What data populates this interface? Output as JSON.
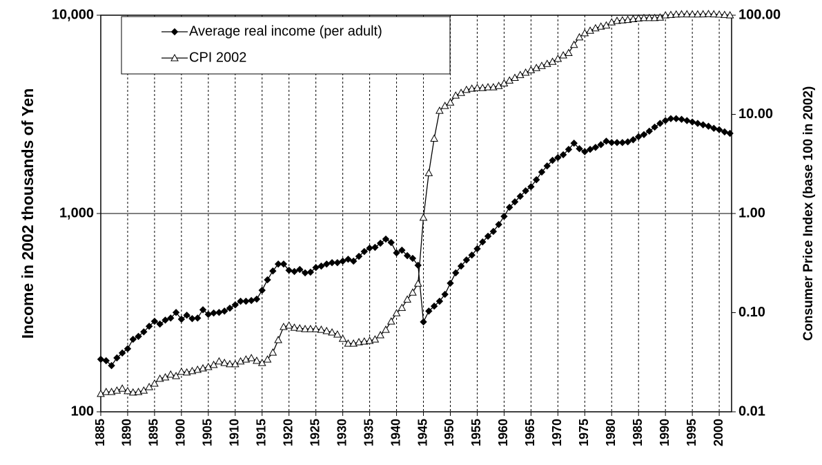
{
  "chart_data": {
    "type": "line",
    "x": [
      1885,
      1886,
      1887,
      1888,
      1889,
      1890,
      1891,
      1892,
      1893,
      1894,
      1895,
      1896,
      1897,
      1898,
      1899,
      1900,
      1901,
      1902,
      1903,
      1904,
      1905,
      1906,
      1907,
      1908,
      1909,
      1910,
      1911,
      1912,
      1913,
      1914,
      1915,
      1916,
      1917,
      1918,
      1919,
      1920,
      1921,
      1922,
      1923,
      1924,
      1925,
      1926,
      1927,
      1928,
      1929,
      1930,
      1931,
      1932,
      1933,
      1934,
      1935,
      1936,
      1937,
      1938,
      1939,
      1940,
      1941,
      1942,
      1943,
      1944,
      1945,
      1946,
      1947,
      1948,
      1949,
      1950,
      1951,
      1952,
      1953,
      1954,
      1955,
      1956,
      1957,
      1958,
      1959,
      1960,
      1961,
      1962,
      1963,
      1964,
      1965,
      1966,
      1967,
      1968,
      1969,
      1970,
      1971,
      1972,
      1973,
      1974,
      1975,
      1976,
      1977,
      1978,
      1979,
      1980,
      1981,
      1982,
      1983,
      1984,
      1985,
      1986,
      1987,
      1988,
      1989,
      1990,
      1991,
      1992,
      1993,
      1994,
      1995,
      1996,
      1997,
      1998,
      1999,
      2000,
      2001,
      2002
    ],
    "xlim": [
      1885,
      2002.3
    ],
    "xticks": [
      1885,
      1890,
      1895,
      1900,
      1905,
      1910,
      1915,
      1920,
      1925,
      1930,
      1935,
      1940,
      1945,
      1950,
      1955,
      1960,
      1965,
      1970,
      1975,
      1980,
      1985,
      1990,
      1995,
      2000
    ],
    "ylabel": "Income in 2002 thousands of Yen",
    "y2label": "Consumer Price Index (base 100 in 2002)",
    "yscale": "log",
    "y2scale": "log",
    "ylim": [
      100,
      10000
    ],
    "yticks": [
      {
        "value": 100,
        "label": "100"
      },
      {
        "value": 1000,
        "label": "1,000"
      },
      {
        "value": 10000,
        "label": "10,000"
      }
    ],
    "y2lim": [
      0.01,
      100
    ],
    "y2ticks": [
      {
        "value": 0.01,
        "label": "0.01"
      },
      {
        "value": 0.1,
        "label": "0.10"
      },
      {
        "value": 1,
        "label": "1.00"
      },
      {
        "value": 10,
        "label": "10.00"
      },
      {
        "value": 100,
        "label": "100.00"
      }
    ],
    "legend": "top-left",
    "series": [
      {
        "name": "Average real income (per adult)",
        "color": "#000000",
        "marker": "diamond",
        "values": [
          184,
          181,
          171,
          187,
          198,
          208,
          232,
          240,
          253,
          270,
          286,
          277,
          290,
          297,
          317,
          293,
          307,
          295,
          297,
          327,
          310,
          315,
          317,
          322,
          333,
          346,
          361,
          361,
          364,
          370,
          410,
          463,
          513,
          556,
          556,
          517,
          510,
          522,
          502,
          506,
          534,
          543,
          556,
          565,
          565,
          575,
          588,
          575,
          608,
          643,
          669,
          675,
          708,
          743,
          714,
          633,
          653,
          613,
          594,
          548,
          284,
          322,
          341,
          361,
          391,
          445,
          502,
          543,
          583,
          617,
          664,
          719,
          768,
          812,
          880,
          967,
          1074,
          1145,
          1221,
          1301,
          1365,
          1480,
          1618,
          1737,
          1853,
          1914,
          1979,
          2105,
          2262,
          2122,
          2050,
          2105,
          2155,
          2225,
          2316,
          2279,
          2279,
          2279,
          2297,
          2355,
          2439,
          2500,
          2601,
          2727,
          2847,
          2941,
          3009,
          3009,
          2985,
          2941,
          2894,
          2847,
          2800,
          2754,
          2689,
          2646,
          2580,
          2535
        ]
      },
      {
        "name": "CPI 2002",
        "color": "#000000",
        "marker": "triangle",
        "axis": "y2",
        "values": [
          0.0152,
          0.0159,
          0.0159,
          0.0164,
          0.0172,
          0.0162,
          0.0157,
          0.0159,
          0.0164,
          0.0178,
          0.0193,
          0.0216,
          0.0223,
          0.0238,
          0.023,
          0.0254,
          0.025,
          0.0258,
          0.0266,
          0.0275,
          0.0284,
          0.0298,
          0.0323,
          0.0312,
          0.0303,
          0.0303,
          0.0323,
          0.0338,
          0.0349,
          0.0328,
          0.0312,
          0.0338,
          0.0397,
          0.0531,
          0.0719,
          0.0743,
          0.0707,
          0.0696,
          0.0685,
          0.0685,
          0.0685,
          0.0674,
          0.0654,
          0.0633,
          0.0603,
          0.0547,
          0.0489,
          0.0489,
          0.0505,
          0.0513,
          0.0521,
          0.0538,
          0.0594,
          0.0674,
          0.0817,
          0.099,
          0.112,
          0.136,
          0.16,
          0.197,
          0.91,
          2.56,
          5.7,
          10.9,
          12.2,
          13.2,
          15.5,
          16.5,
          17.7,
          18.2,
          18.5,
          18.5,
          18.8,
          18.8,
          19.4,
          20.6,
          22,
          23.4,
          25,
          26.4,
          28,
          29.4,
          30.9,
          32.4,
          34,
          36.4,
          39.4,
          41.7,
          50.4,
          60,
          66,
          70,
          74,
          77,
          79,
          85,
          88,
          89,
          90,
          91.5,
          93,
          94,
          94,
          94,
          95,
          100,
          101,
          102,
          102.5,
          102.5,
          102.3,
          102.3,
          102.5,
          103,
          102.5,
          101.8,
          101,
          100
        ]
      }
    ]
  }
}
